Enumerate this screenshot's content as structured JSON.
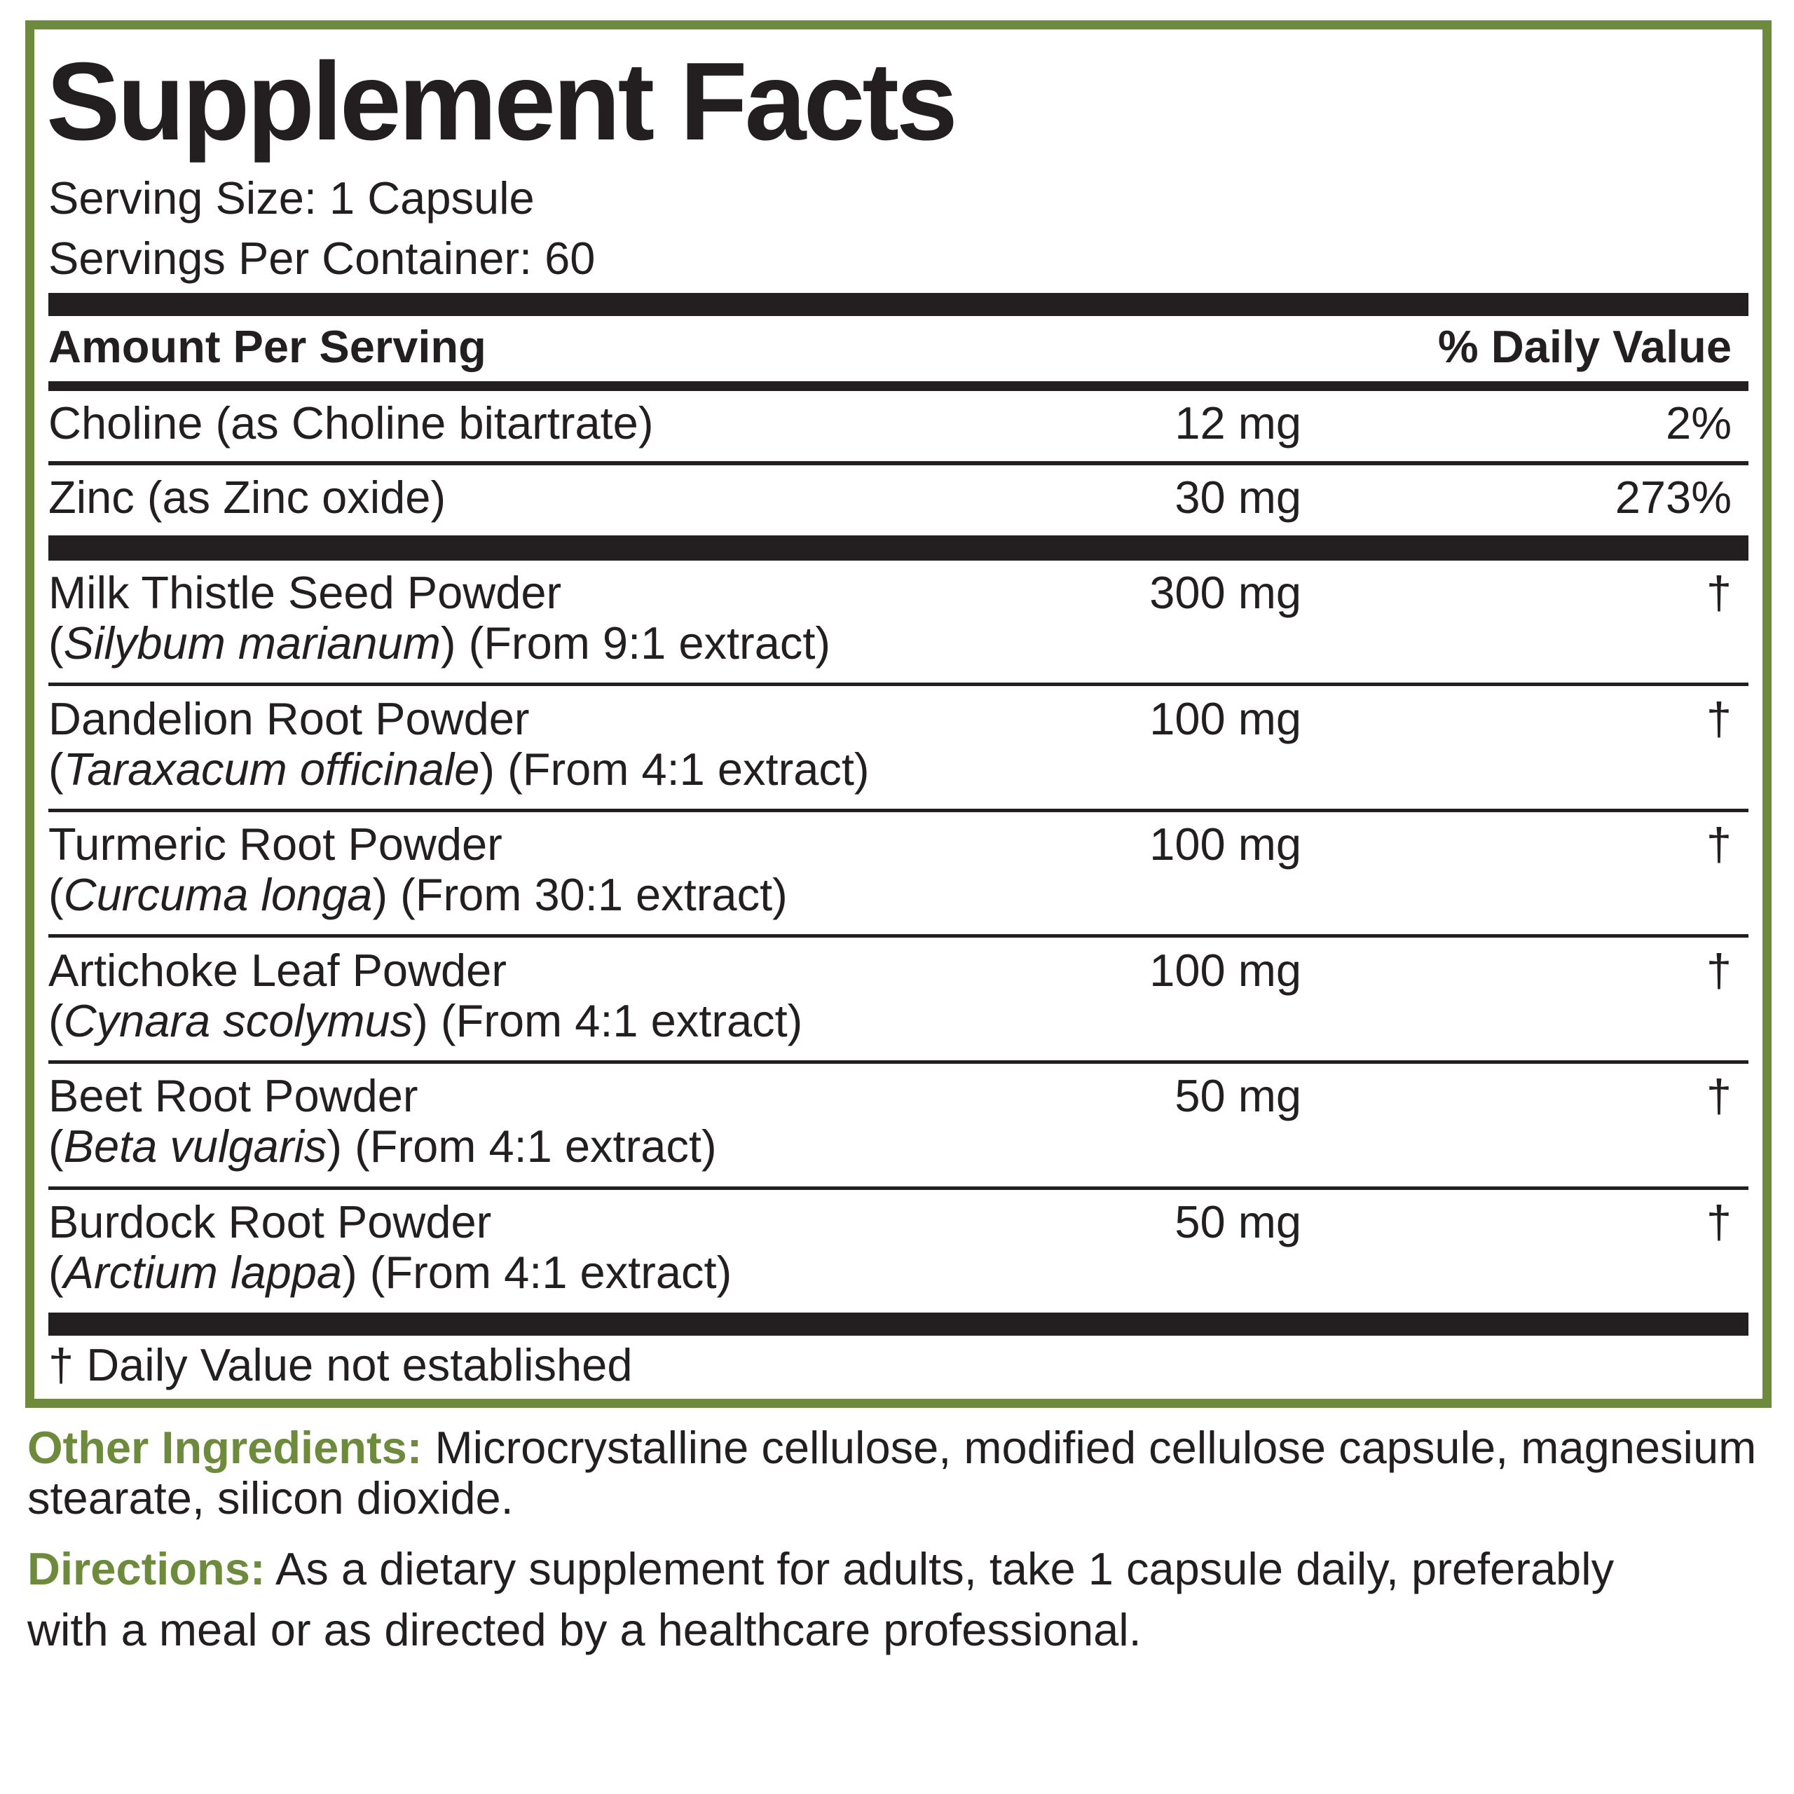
{
  "header": {
    "title": "Supplement Facts",
    "serving_size": "Serving Size: 1 Capsule",
    "servings_per_container": "Servings Per Container: 60"
  },
  "table": {
    "columns": [
      "Amount Per Serving",
      "% Daily Value"
    ],
    "rows": [
      {
        "name": "Choline (as Choline bitartrate)",
        "amount": "12 mg",
        "daily_value": "2%"
      },
      {
        "name": "Zinc (as Zinc oxide)",
        "amount": "30 mg",
        "daily_value": "273%"
      }
    ],
    "botanicals": [
      {
        "name": "Milk Thistle Seed Powder",
        "detail": [
          "(",
          "Silybum marianum",
          ") (From 9:1 extract)"
        ],
        "amount": "300 mg",
        "daily_value": "†"
      },
      {
        "name": "Dandelion Root Powder",
        "detail": [
          "(",
          "Taraxacum officinale",
          ") (From 4:1 extract)"
        ],
        "amount": "100 mg",
        "daily_value": "†"
      },
      {
        "name": "Turmeric Root Powder",
        "detail": [
          "(",
          "Curcuma longa",
          ") (From 30:1 extract)"
        ],
        "amount": "100 mg",
        "daily_value": "†"
      },
      {
        "name": "Artichoke Leaf Powder",
        "detail": [
          "(",
          "Cynara scolymus",
          ") (From 4:1 extract)"
        ],
        "amount": "100 mg",
        "daily_value": "†"
      },
      {
        "name": "Beet Root Powder",
        "detail": [
          "(",
          "Beta vulgaris",
          ") (From 4:1 extract)"
        ],
        "amount": "50 mg",
        "daily_value": "†"
      },
      {
        "name": "Burdock Root Powder",
        "detail": [
          "(",
          "Arctium lappa",
          ") (From 4:1 extract)"
        ],
        "amount": "50 mg",
        "daily_value": "†"
      }
    ],
    "footnote": "† Daily Value not established"
  },
  "other_ingredients": {
    "label": "Other Ingredients:",
    "text": " Microcrystalline cellulose, modified cellulose capsule, magnesium stearate, silicon dioxide."
  },
  "directions": {
    "label": "Directions:",
    "text": " As a dietary supplement for adults, take 1 capsule daily, preferably with a meal or as directed by a healthcare professional."
  }
}
